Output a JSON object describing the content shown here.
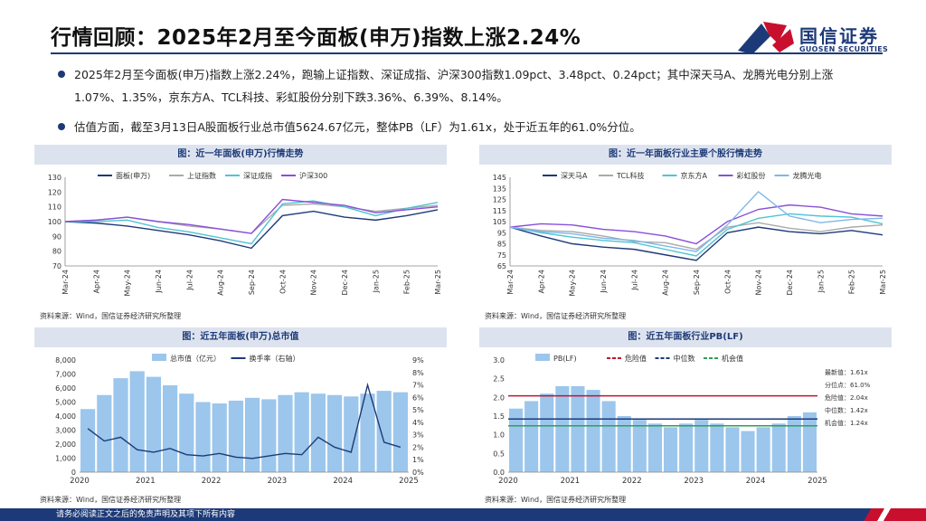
{
  "page": {
    "title": "行情回顾：2025年2月至今面板(申万)指数上涨2.24%",
    "logo_cn": "国信证券",
    "logo_en": "GUOSEN SECURITIES",
    "bullets": [
      "2025年2月至今面板(申万)指数上涨2.24%，跑输上证指数、深证成指、沪深300指数1.09pct、3.48pct、0.24pct；其中深天马A、龙腾光电分别上涨1.07%、1.35%，京东方A、TCL科技、彩虹股份分别下跌3.36%、6.39%、8.14%。",
      "估值方面，截至3月13日A股面板行业总市值5624.67亿元，整体PB（LF）为1.61x，处于近五年的61.0%分位。"
    ],
    "footer": "请务必阅读正文之后的免责声明及其项下所有内容",
    "source": "资料来源：Wind，国信证券经济研究所整理"
  },
  "colors": {
    "navy": "#1d3a78",
    "red": "#c8102e",
    "grey": "#aaaaaa",
    "cyan": "#4fc4d4",
    "purple": "#8a4fd8",
    "lightblue": "#9cc6ec",
    "skyblue": "#7fb7e8",
    "green": "#2ca05a"
  },
  "chart_data": [
    {
      "id": "c1",
      "type": "line",
      "title": "图：近一年面板(申万)行情走势",
      "x": [
        "Mar-24",
        "Apr-24",
        "May-24",
        "Jun-24",
        "Jul-24",
        "Aug-24",
        "Sep-24",
        "Oct-24",
        "Nov-24",
        "Dec-24",
        "Jan-25",
        "Feb-25",
        "Mar-25"
      ],
      "ylim": [
        70,
        130
      ],
      "yticks": [
        70,
        80,
        90,
        100,
        110,
        120,
        130
      ],
      "legend": "top",
      "series": [
        {
          "name": "面板(申万)",
          "color": "#1d3a78",
          "values": [
            100,
            99,
            97,
            94,
            91,
            87,
            82,
            104,
            107,
            103,
            101,
            104,
            108
          ]
        },
        {
          "name": "上证指数",
          "color": "#aaaaaa",
          "values": [
            100,
            101,
            103,
            100,
            97,
            95,
            92,
            111,
            112,
            110,
            107,
            109,
            111
          ]
        },
        {
          "name": "深证成指",
          "color": "#4fc4d4",
          "values": [
            100,
            100,
            101,
            96,
            93,
            89,
            85,
            112,
            114,
            110,
            104,
            109,
            113
          ]
        },
        {
          "name": "沪深300",
          "color": "#8a4fd8",
          "values": [
            100,
            101,
            103,
            100,
            98,
            95,
            92,
            115,
            113,
            111,
            106,
            108,
            110
          ]
        }
      ]
    },
    {
      "id": "c2",
      "type": "line",
      "title": "图：近一年面板行业主要个股行情走势",
      "x": [
        "Mar-24",
        "Apr-24",
        "May-24",
        "Jun-24",
        "Jul-24",
        "Aug-24",
        "Sep-24",
        "Oct-24",
        "Nov-24",
        "Dec-24",
        "Jan-25",
        "Feb-25",
        "Mar-25"
      ],
      "ylim": [
        65,
        145
      ],
      "yticks": [
        65,
        75,
        85,
        95,
        105,
        115,
        125,
        135,
        145
      ],
      "legend": "top",
      "series": [
        {
          "name": "深天马A",
          "color": "#1d3a78",
          "values": [
            100,
            92,
            85,
            82,
            80,
            75,
            70,
            95,
            100,
            96,
            94,
            97,
            93
          ]
        },
        {
          "name": "TCL科技",
          "color": "#aaaaaa",
          "values": [
            100,
            97,
            96,
            92,
            87,
            86,
            80,
            100,
            104,
            99,
            96,
            100,
            102
          ]
        },
        {
          "name": "京东方A",
          "color": "#4fc4d4",
          "values": [
            100,
            95,
            91,
            88,
            86,
            80,
            74,
            98,
            108,
            112,
            110,
            109,
            103
          ]
        },
        {
          "name": "彩虹股份",
          "color": "#8a4fd8",
          "values": [
            100,
            103,
            102,
            98,
            96,
            92,
            85,
            105,
            116,
            120,
            118,
            112,
            110
          ]
        },
        {
          "name": "龙腾光电",
          "color": "#7fb7e8",
          "values": [
            100,
            96,
            94,
            90,
            88,
            83,
            78,
            102,
            132,
            110,
            104,
            107,
            108
          ]
        }
      ]
    },
    {
      "id": "c3",
      "type": "bar",
      "title": "图：近五年面板(申万)总市值",
      "x_ticks": [
        "2020",
        "2021",
        "2022",
        "2023",
        "2024",
        "2025"
      ],
      "ylim": [
        0,
        8000
      ],
      "yticks": [
        "0",
        "1,000",
        "2,000",
        "3,000",
        "4,000",
        "5,000",
        "6,000",
        "7,000",
        "8,000"
      ],
      "y2lim": [
        0,
        9
      ],
      "y2ticks": [
        "0%",
        "1%",
        "2%",
        "3%",
        "4%",
        "5%",
        "6%",
        "7%",
        "8%",
        "9%"
      ],
      "legend": "top",
      "series": [
        {
          "name": "总市值（亿元）",
          "color": "#9cc6ec",
          "type": "bar",
          "values": [
            4500,
            5500,
            6700,
            7200,
            6800,
            6200,
            5600,
            5000,
            4900,
            5100,
            5300,
            5200,
            5500,
            5700,
            5600,
            5500,
            5400,
            5600,
            5800,
            5700
          ]
        },
        {
          "name": "换手率（右轴）",
          "color": "#1d3a78",
          "type": "line",
          "values": [
            3.5,
            2.5,
            2.8,
            1.8,
            1.6,
            1.9,
            1.4,
            1.3,
            1.5,
            1.2,
            1.1,
            1.3,
            1.5,
            1.4,
            2.8,
            2.0,
            1.6,
            7.0,
            2.4,
            2.0
          ]
        }
      ]
    },
    {
      "id": "c4",
      "type": "bar",
      "title": "图：近五年面板行业PB(LF)",
      "x_ticks": [
        "2020",
        "2021",
        "2022",
        "2023",
        "2024",
        "2025"
      ],
      "ylim": [
        0,
        3.0
      ],
      "yticks": [
        "0.0",
        "0.5",
        "1.0",
        "1.5",
        "2.0",
        "2.5",
        "3.0"
      ],
      "legend": "top",
      "series": [
        {
          "name": "PB(LF)",
          "color": "#9cc6ec",
          "type": "bar",
          "values": [
            1.7,
            1.9,
            2.1,
            2.3,
            2.3,
            2.2,
            1.9,
            1.5,
            1.4,
            1.3,
            1.2,
            1.3,
            1.4,
            1.3,
            1.2,
            1.1,
            1.2,
            1.3,
            1.5,
            1.6
          ]
        },
        {
          "name": "危险值",
          "color": "#c8102e",
          "type": "hline",
          "value": 2.04
        },
        {
          "name": "中位数",
          "color": "#1d3a78",
          "type": "hline",
          "value": 1.42
        },
        {
          "name": "机会值",
          "color": "#2ca05a",
          "type": "hline",
          "value": 1.24
        }
      ],
      "annotations": [
        "最新值：1.61x",
        "分位点：61.0%",
        "危险值：2.04x",
        "中位数：1.42x",
        "机会值：1.24x"
      ]
    }
  ]
}
